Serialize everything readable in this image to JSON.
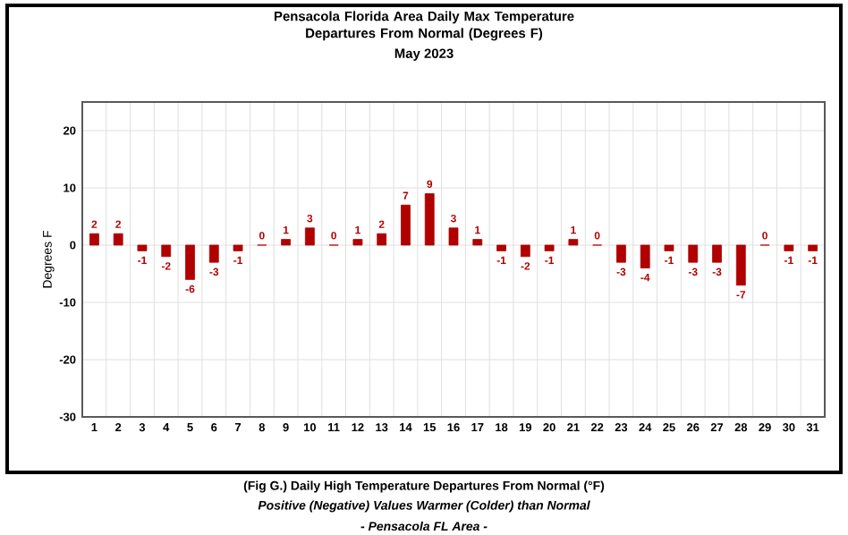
{
  "chart_data": {
    "type": "bar",
    "title": "Pensacola Florida Area Daily Max Temperature Departures From Normal (Degrees F)",
    "subtitle": "May 2023",
    "ylabel": "Degrees F",
    "categories": [
      "1",
      "2",
      "3",
      "4",
      "5",
      "6",
      "7",
      "8",
      "9",
      "10",
      "11",
      "12",
      "13",
      "14",
      "15",
      "16",
      "17",
      "18",
      "19",
      "20",
      "21",
      "22",
      "23",
      "24",
      "25",
      "26",
      "27",
      "28",
      "29",
      "30",
      "31"
    ],
    "values": [
      2,
      2,
      -1,
      -2,
      -6,
      -3,
      -1,
      0,
      1,
      3,
      0,
      1,
      2,
      7,
      9,
      3,
      1,
      -1,
      -2,
      -1,
      1,
      0,
      -3,
      -4,
      -1,
      -3,
      -3,
      -7,
      0,
      -1,
      -1
    ],
    "color": "#b00000",
    "ylim": [
      -30,
      25
    ],
    "yticks": [
      -30,
      -20,
      -10,
      0,
      10,
      20
    ],
    "grid": true,
    "data_labels": true,
    "annotations": [
      "(Fig G.) Daily High Temperature Departures From Normal (°F)",
      "Positive (Negative) Values Warmer (Colder) than Normal",
      "- Pensacola FL Area -"
    ]
  }
}
